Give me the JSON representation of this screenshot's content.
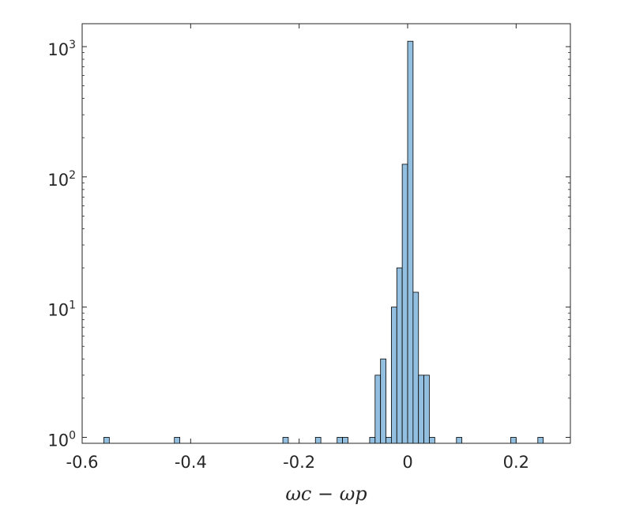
{
  "chart_data": {
    "type": "bar",
    "subtype": "histogram",
    "yscale": "log",
    "title": "",
    "xlabel": "ωc − ωp",
    "ylabel": "",
    "xlim": [
      -0.6,
      0.3
    ],
    "ylim": [
      0.9,
      1500
    ],
    "bin_width": 0.01,
    "x_ticks": [
      -0.6,
      -0.4,
      -0.2,
      0,
      0.2
    ],
    "x_tick_labels": [
      "-0.6",
      "-0.4",
      "-0.2",
      "0",
      "0.2"
    ],
    "y_ticks": [
      1,
      10,
      100,
      1000
    ],
    "y_tick_labels": [
      {
        "base": "10",
        "exp": "0"
      },
      {
        "base": "10",
        "exp": "1"
      },
      {
        "base": "10",
        "exp": "2"
      },
      {
        "base": "10",
        "exp": "3"
      }
    ],
    "bins": [
      {
        "x": -0.555,
        "count": 1
      },
      {
        "x": -0.425,
        "count": 1
      },
      {
        "x": -0.225,
        "count": 1
      },
      {
        "x": -0.165,
        "count": 1
      },
      {
        "x": -0.125,
        "count": 1
      },
      {
        "x": -0.115,
        "count": 1
      },
      {
        "x": -0.065,
        "count": 1
      },
      {
        "x": -0.055,
        "count": 3
      },
      {
        "x": -0.045,
        "count": 4
      },
      {
        "x": -0.035,
        "count": 1
      },
      {
        "x": -0.025,
        "count": 10
      },
      {
        "x": -0.015,
        "count": 20
      },
      {
        "x": -0.005,
        "count": 125
      },
      {
        "x": 0.005,
        "count": 1100
      },
      {
        "x": 0.015,
        "count": 13
      },
      {
        "x": 0.025,
        "count": 3
      },
      {
        "x": 0.035,
        "count": 3
      },
      {
        "x": 0.045,
        "count": 1
      },
      {
        "x": 0.095,
        "count": 1
      },
      {
        "x": 0.195,
        "count": 1
      },
      {
        "x": 0.245,
        "count": 1
      }
    ],
    "bar_color": "#93c0e0",
    "edge_color": "#000000",
    "grid": false,
    "box": true
  }
}
